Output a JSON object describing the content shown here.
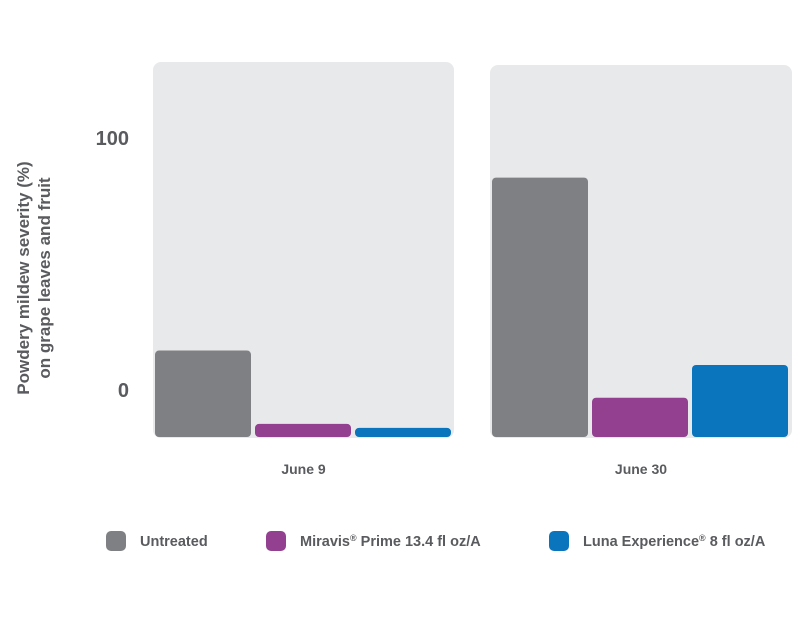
{
  "chart_data": {
    "type": "bar",
    "title": "",
    "ylabel": "Powdery mildew severity (%) on grape leaves and fruit",
    "ylabel_lines": [
      "Powdery mildew severity (%)",
      "on grape leaves and fruit"
    ],
    "xlabel": "",
    "ylim": [
      0,
      100
    ],
    "yticks": [
      "0",
      "100"
    ],
    "categories": [
      "June 9",
      "June 30"
    ],
    "series": [
      {
        "name": "Untreated",
        "color": "#7f8083",
        "values": [
          33,
          99
        ]
      },
      {
        "name": "Miravis® Prime 13.4 fl oz/A",
        "color": "#92408f",
        "values": [
          5,
          15
        ]
      },
      {
        "name": "Luna Experience® 8 fl oz/A",
        "color": "#0a74bc",
        "values": [
          3.5,
          27.5
        ]
      }
    ],
    "grid": false,
    "legend_position": "bottom"
  },
  "legend": [
    {
      "base": "Untreated",
      "mark": "",
      "rest": "",
      "color": "#7f8083"
    },
    {
      "base": "Miravis",
      "mark": "®",
      "rest": " Prime 13.4 fl oz/A",
      "color": "#92408f"
    },
    {
      "base": "Luna Experience",
      "mark": "®",
      "rest": " 8 fl oz/A",
      "color": "#0a74bc"
    }
  ],
  "colors": {
    "panel_background": "#e8e9eb",
    "text": "#5a5b5e"
  }
}
